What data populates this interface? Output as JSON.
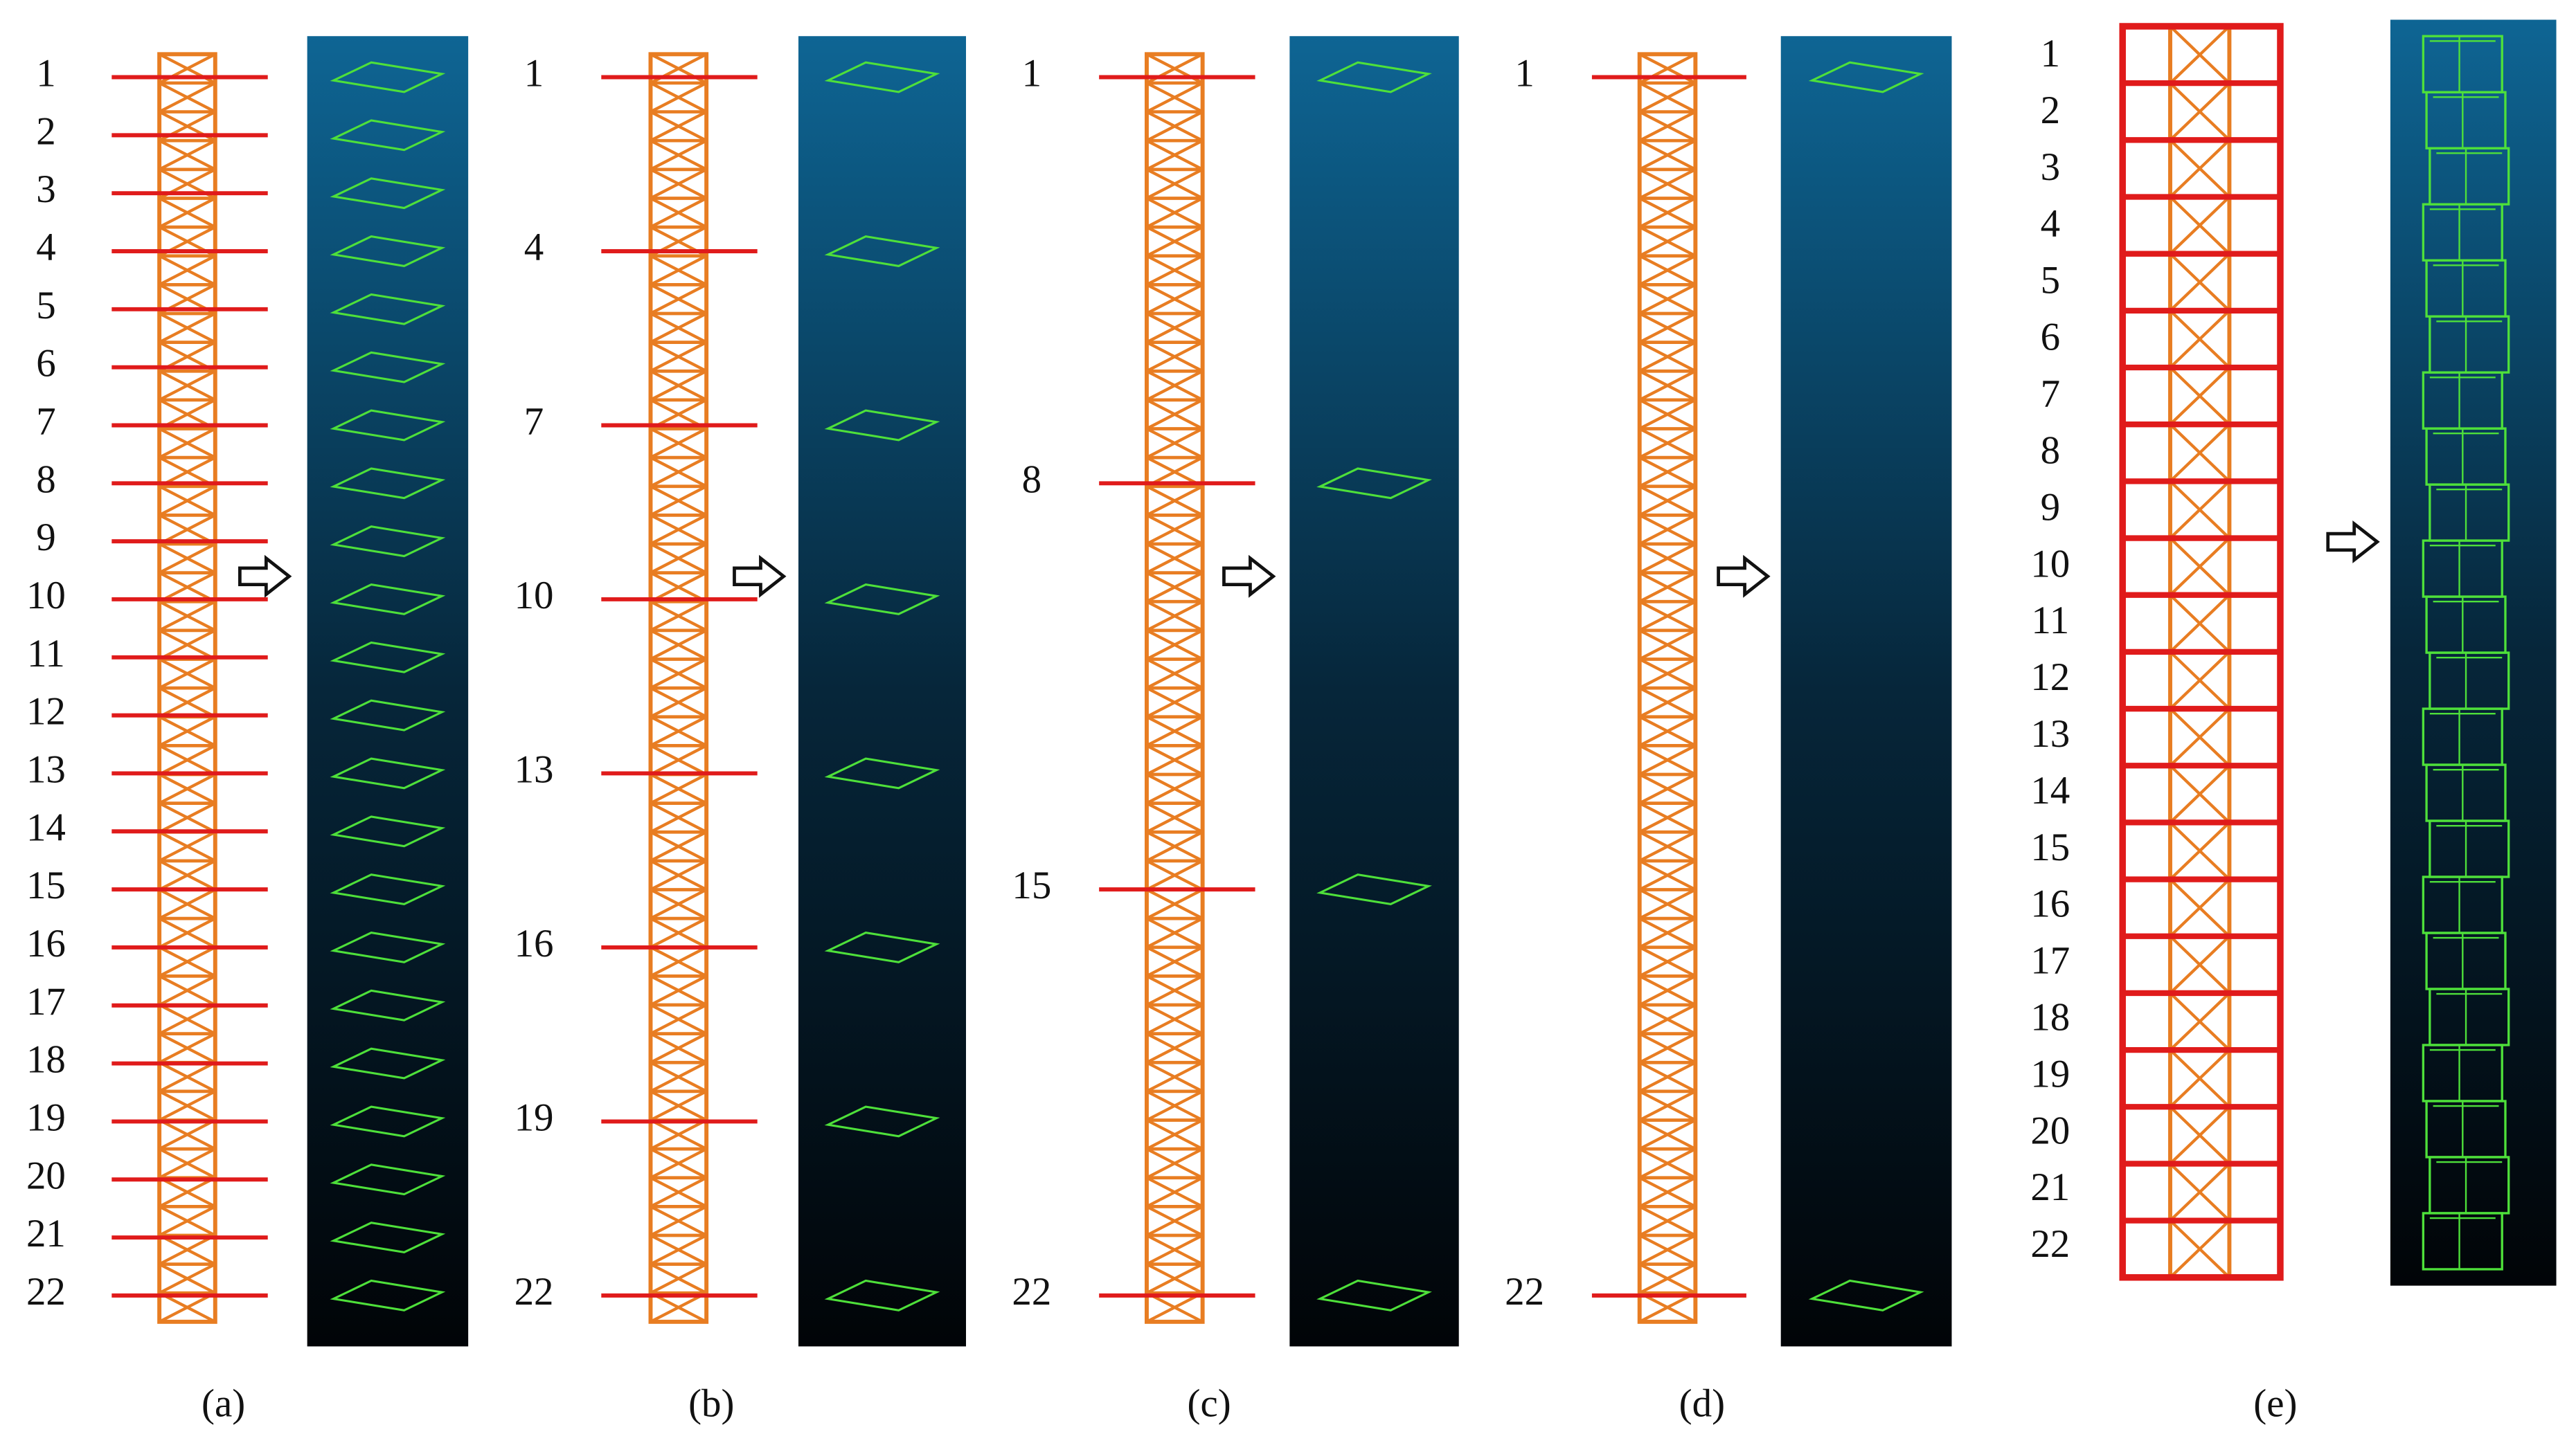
{
  "panels": [
    {
      "caption": "(a)",
      "levels": [
        "1",
        "2",
        "3",
        "4",
        "5",
        "6",
        "7",
        "8",
        "9",
        "10",
        "11",
        "12",
        "13",
        "14",
        "15",
        "16",
        "17",
        "18",
        "19",
        "20",
        "21",
        "22"
      ]
    },
    {
      "caption": "(b)",
      "levels": [
        "1",
        "4",
        "7",
        "10",
        "13",
        "16",
        "19",
        "22"
      ]
    },
    {
      "caption": "(c)",
      "levels": [
        "1",
        "8",
        "15",
        "22"
      ]
    },
    {
      "caption": "(d)",
      "levels": [
        "1",
        "22"
      ]
    },
    {
      "caption": "(e)",
      "levels": [
        "1",
        "2",
        "3",
        "4",
        "5",
        "6",
        "7",
        "8",
        "9",
        "10",
        "11",
        "12",
        "13",
        "14",
        "15",
        "16",
        "17",
        "18",
        "19",
        "20",
        "21",
        "22"
      ]
    }
  ]
}
